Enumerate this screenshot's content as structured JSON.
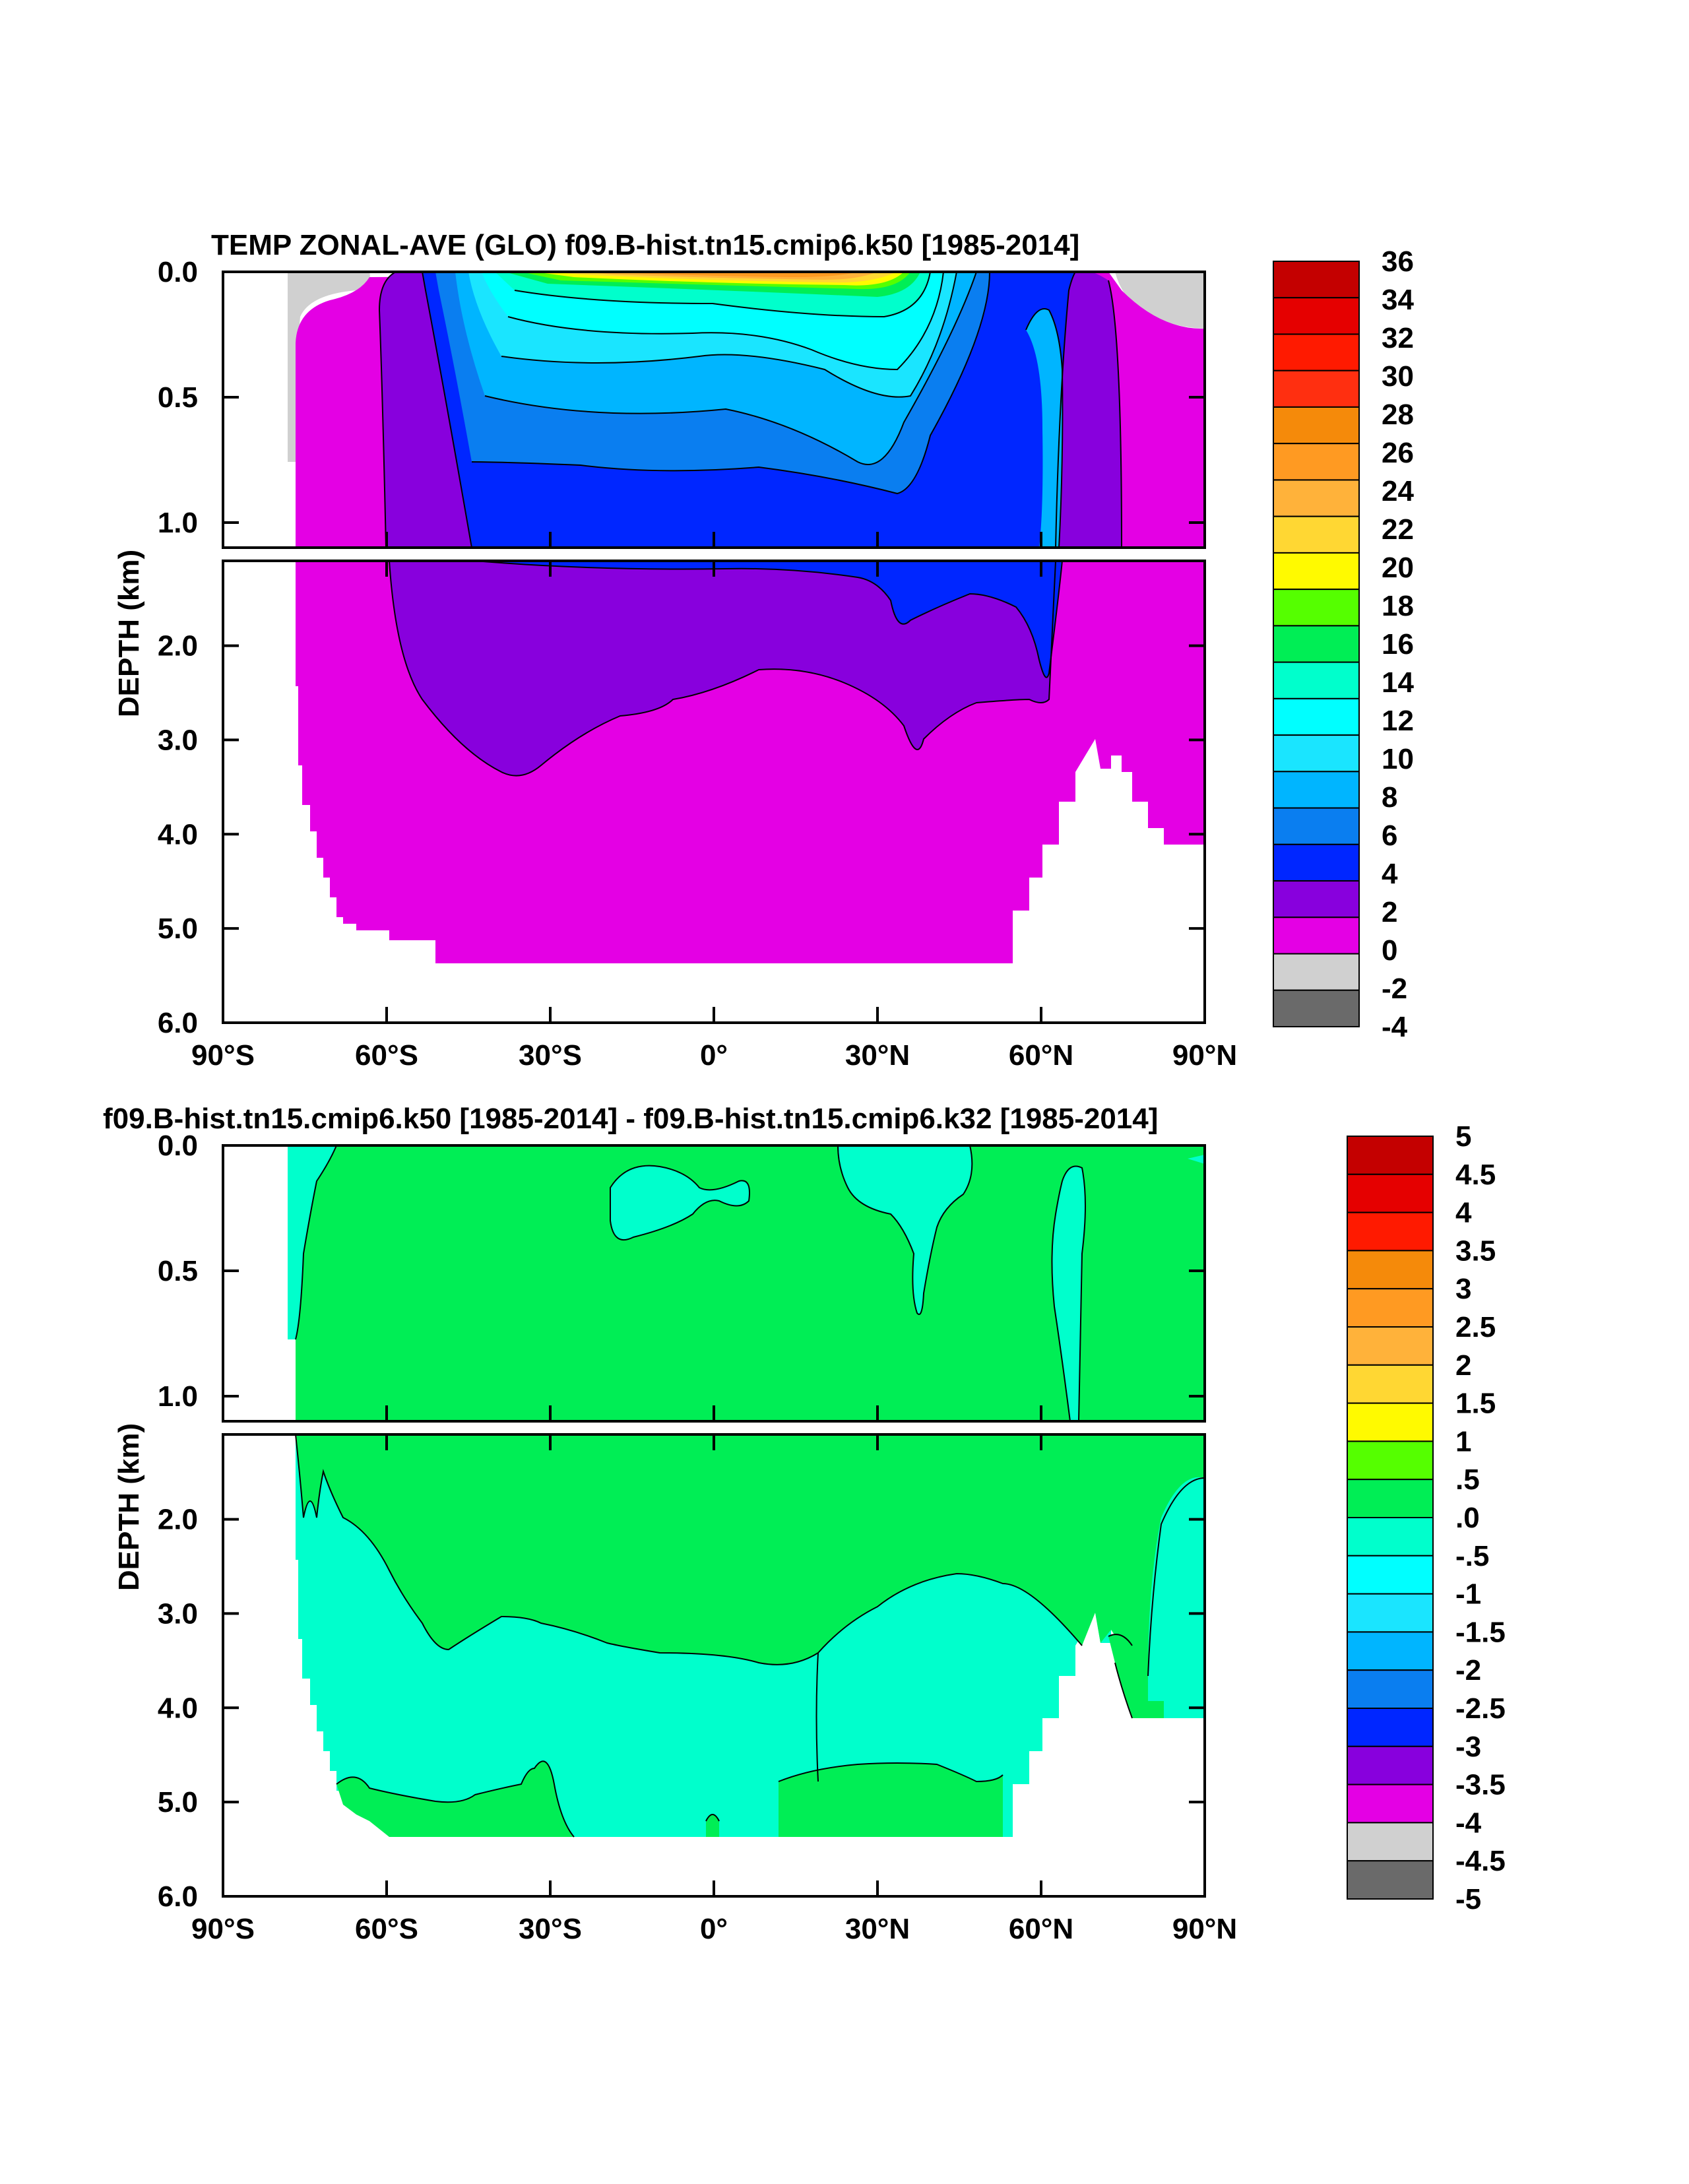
{
  "chart_data": [
    {
      "type": "heatmap",
      "title": "TEMP ZONAL-AVE (GLO) f09.B-hist.tn15.cmip6.k50 [1985-2014]",
      "ylabel": "DEPTH (km)",
      "xlabel": "",
      "xlim": [
        -90,
        90
      ],
      "ylim": [
        6.0,
        0.0
      ],
      "upper_panel_depth_range": [
        0.0,
        1.1
      ],
      "lower_panel_depth_range": [
        1.1,
        6.0
      ],
      "x_ticks": [
        {
          "value": -90,
          "label": "90°S"
        },
        {
          "value": -60,
          "label": "60°S"
        },
        {
          "value": -30,
          "label": "30°S"
        },
        {
          "value": 0,
          "label": "0°"
        },
        {
          "value": 30,
          "label": "30°N"
        },
        {
          "value": 60,
          "label": "60°N"
        },
        {
          "value": 90,
          "label": "90°N"
        }
      ],
      "y_ticks_upper": [
        "0.0",
        "0.5",
        "1.0"
      ],
      "y_ticks_lower": [
        "2.0",
        "3.0",
        "4.0",
        "5.0",
        "6.0"
      ],
      "colorbar": {
        "labels": [
          "36",
          "34",
          "32",
          "30",
          "28",
          "26",
          "24",
          "22",
          "20",
          "18",
          "16",
          "14",
          "12",
          "10",
          "8",
          "6",
          "4",
          "2",
          "0",
          "-2",
          "-4"
        ],
        "colors": [
          "#c40000",
          "#e50000",
          "#ff1a00",
          "#ff2f10",
          "#f58a0a",
          "#ff9a22",
          "#ffb23a",
          "#ffd733",
          "#fffa00",
          "#55ff00",
          "#00ee55",
          "#00ffcc",
          "#00ffff",
          "#1ae5ff",
          "#00b5ff",
          "#0a7ef0",
          "#0026ff",
          "#8800dd",
          "#e400e4",
          "#d0d0d0",
          "#6a6a6a"
        ]
      }
    },
    {
      "type": "heatmap",
      "title": "f09.B-hist.tn15.cmip6.k50 [1985-2014] - f09.B-hist.tn15.cmip6.k32 [1985-2014]",
      "ylabel": "DEPTH (km)",
      "xlabel": "",
      "xlim": [
        -90,
        90
      ],
      "ylim": [
        6.0,
        0.0
      ],
      "upper_panel_depth_range": [
        0.0,
        1.1
      ],
      "lower_panel_depth_range": [
        1.1,
        6.0
      ],
      "x_ticks": [
        {
          "value": -90,
          "label": "90°S"
        },
        {
          "value": -60,
          "label": "60°S"
        },
        {
          "value": -30,
          "label": "30°S"
        },
        {
          "value": 0,
          "label": "0°"
        },
        {
          "value": 30,
          "label": "30°N"
        },
        {
          "value": 60,
          "label": "60°N"
        },
        {
          "value": 90,
          "label": "90°N"
        }
      ],
      "y_ticks_upper": [
        "0.0",
        "0.5",
        "1.0"
      ],
      "y_ticks_lower": [
        "2.0",
        "3.0",
        "4.0",
        "5.0",
        "6.0"
      ],
      "colorbar": {
        "labels": [
          "5",
          "4.5",
          "4",
          "3.5",
          "3",
          "2.5",
          "2",
          "1.5",
          "1",
          ".5",
          ".0",
          "-.5",
          "-1",
          "-1.5",
          "-2",
          "-2.5",
          "-3",
          "-3.5",
          "-4",
          "-4.5",
          "-5"
        ],
        "colors": [
          "#c40000",
          "#e50000",
          "#ff1a00",
          "#f58a0a",
          "#ff9a22",
          "#ffb23a",
          "#ffd733",
          "#fffa00",
          "#55ff00",
          "#00ee55",
          "#00ffcc",
          "#00ffff",
          "#1ae5ff",
          "#00b5ff",
          "#0a7ef0",
          "#0026ff",
          "#8800dd",
          "#e400e4",
          "#d0d0d0",
          "#6a6a6a"
        ]
      }
    }
  ]
}
